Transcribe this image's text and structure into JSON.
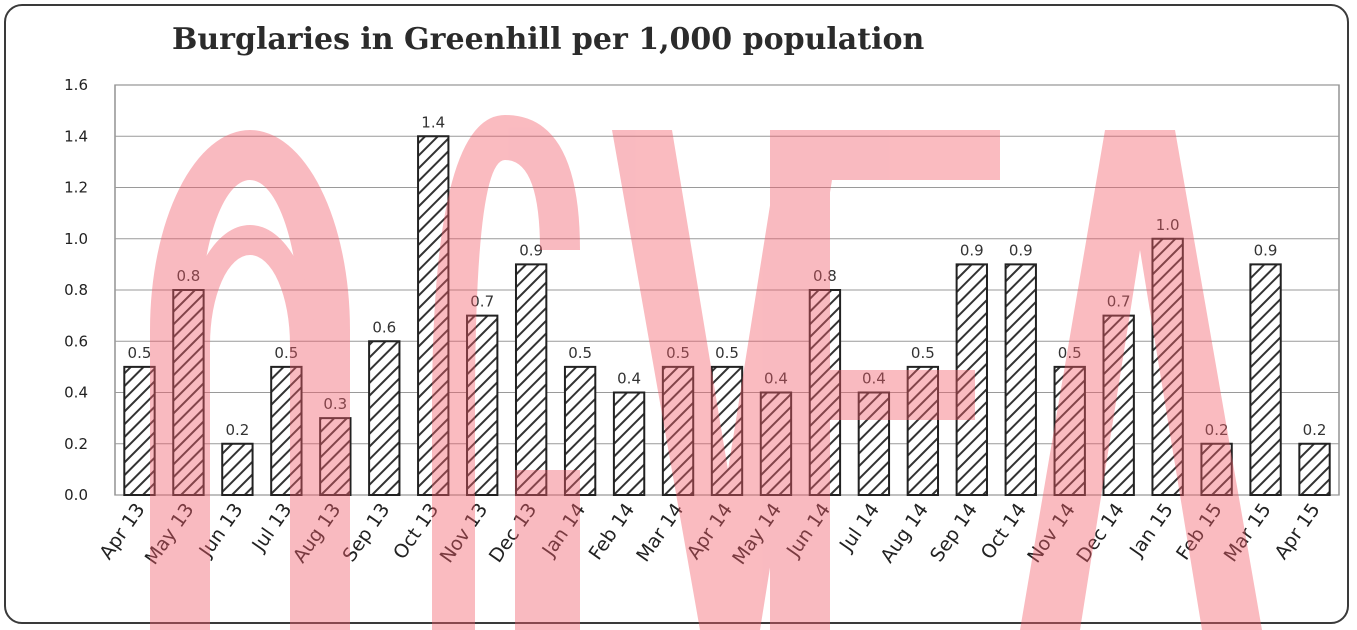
{
  "chart_data": {
    "type": "bar",
    "title": "Burglaries in Greenhill per 1,000 population",
    "xlabel": "",
    "ylabel": "",
    "ylim": [
      0,
      1.6
    ],
    "yticks": [
      "0.0",
      "0.2",
      "0.4",
      "0.6",
      "0.8",
      "1.0",
      "1.2",
      "1.4",
      "1.6"
    ],
    "grid": true,
    "legend": "none",
    "categories": [
      "Apr 13",
      "May 13",
      "Jun 13",
      "Jul 13",
      "Aug 13",
      "Sep 13",
      "Oct 13",
      "Nov 13",
      "Dec 13",
      "Jan 14",
      "Feb 14",
      "Mar 14",
      "Apr 14",
      "May 14",
      "Jun 14",
      "Jul 14",
      "Aug 14",
      "Sep 14",
      "Oct 14",
      "Nov 14",
      "Dec 14",
      "Jan 15",
      "Feb 15",
      "Mar 15",
      "Apr 15"
    ],
    "values": [
      0.5,
      0.8,
      0.2,
      0.5,
      0.3,
      0.6,
      1.4,
      0.7,
      0.9,
      0.5,
      0.4,
      0.5,
      0.5,
      0.4,
      0.8,
      0.4,
      0.5,
      0.9,
      0.9,
      0.5,
      0.7,
      1.0,
      0.2,
      0.9,
      0.2
    ],
    "data_labels": [
      "0.5",
      "0.8",
      "0.2",
      "0.5",
      "0.3",
      "0.6",
      "1.4",
      "0.7",
      "0.9",
      "0.5",
      "0.4",
      "0.5",
      "0.5",
      "0.4",
      "0.8",
      "0.4",
      "0.5",
      "0.9",
      "0.9",
      "0.5",
      "0.7",
      "1.0",
      "0.2",
      "0.9",
      "0.2"
    ],
    "bar_fill": "diagonal hatch",
    "colors": {
      "bar_outline": "#222222",
      "hatch": "#333333",
      "grid": "#9a9a9a",
      "watermark": "#f25c6a"
    }
  }
}
